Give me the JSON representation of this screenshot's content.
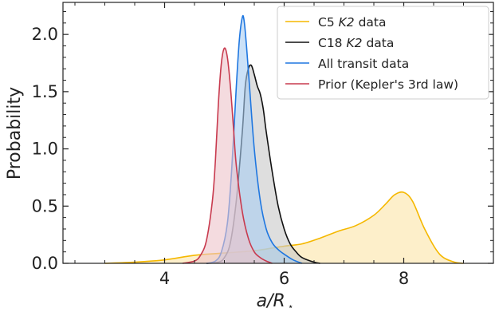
{
  "chart_data": {
    "type": "area",
    "title": "",
    "xlabel": "a/R",
    "xlabel_sub": "⋆",
    "ylabel": "Probability",
    "xlim": [
      2.3,
      9.5
    ],
    "ylim": [
      0.0,
      2.28
    ],
    "xticks": [
      4,
      6,
      8
    ],
    "xtick_labels": [
      "4",
      "6",
      "8"
    ],
    "yticks": [
      0.0,
      0.5,
      1.0,
      1.5,
      2.0
    ],
    "ytick_labels": [
      "0.0",
      "0.5",
      "1.0",
      "1.5",
      "2.0"
    ],
    "grid": false,
    "legend_position": "top-right",
    "series": [
      {
        "name": "C5 K2 data",
        "legend_parts": [
          "C5 ",
          "K2",
          " data"
        ],
        "color": "#f5b800",
        "fill": "#fce5a6",
        "x": [
          3.0,
          3.5,
          4.0,
          4.5,
          5.0,
          5.5,
          6.0,
          6.3,
          6.6,
          6.9,
          7.2,
          7.5,
          7.7,
          7.85,
          8.0,
          8.15,
          8.35,
          8.6,
          8.85,
          9.0
        ],
        "y": [
          0.0,
          0.01,
          0.03,
          0.07,
          0.09,
          0.11,
          0.15,
          0.17,
          0.22,
          0.28,
          0.33,
          0.42,
          0.52,
          0.6,
          0.62,
          0.54,
          0.3,
          0.08,
          0.01,
          0.0
        ]
      },
      {
        "name": "C18 K2 data",
        "legend_parts": [
          "C18 ",
          "K2",
          " data"
        ],
        "color": "#111111",
        "fill": "#c8c8c8",
        "x": [
          4.7,
          4.9,
          5.0,
          5.1,
          5.2,
          5.3,
          5.35,
          5.4,
          5.45,
          5.5,
          5.55,
          5.6,
          5.65,
          5.7,
          5.8,
          5.9,
          6.0,
          6.1,
          6.2,
          6.3,
          6.5,
          6.6
        ],
        "y": [
          0.0,
          0.01,
          0.05,
          0.18,
          0.55,
          1.15,
          1.55,
          1.7,
          1.73,
          1.65,
          1.55,
          1.48,
          1.35,
          1.15,
          0.8,
          0.5,
          0.3,
          0.17,
          0.1,
          0.05,
          0.01,
          0.0
        ]
      },
      {
        "name": "All transit data",
        "legend_parts": [
          "All transit data"
        ],
        "color": "#1f77e0",
        "fill": "#a8cdf2",
        "x": [
          4.7,
          4.85,
          4.95,
          5.05,
          5.12,
          5.2,
          5.25,
          5.3,
          5.33,
          5.37,
          5.42,
          5.5,
          5.6,
          5.7,
          5.8,
          5.9,
          6.0,
          6.15,
          6.3
        ],
        "y": [
          0.0,
          0.02,
          0.1,
          0.35,
          0.8,
          1.55,
          1.95,
          2.15,
          2.12,
          1.9,
          1.55,
          1.0,
          0.55,
          0.3,
          0.18,
          0.12,
          0.08,
          0.03,
          0.0
        ]
      },
      {
        "name": "Prior (Kepler's 3rd law)",
        "legend_parts": [
          "Prior (Kepler's 3rd law)"
        ],
        "color": "#c83a4e",
        "fill": "#edc3ca",
        "x": [
          4.3,
          4.5,
          4.6,
          4.7,
          4.8,
          4.85,
          4.9,
          4.95,
          5.0,
          5.05,
          5.1,
          5.15,
          5.2,
          5.3,
          5.4,
          5.5,
          5.6,
          5.7,
          5.8
        ],
        "y": [
          0.0,
          0.02,
          0.07,
          0.2,
          0.55,
          0.9,
          1.4,
          1.75,
          1.88,
          1.8,
          1.55,
          1.2,
          0.85,
          0.45,
          0.22,
          0.1,
          0.05,
          0.02,
          0.0
        ]
      }
    ]
  }
}
